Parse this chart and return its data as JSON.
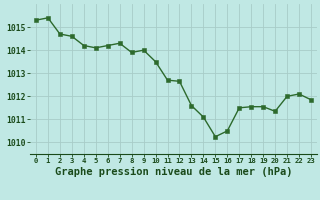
{
  "x": [
    0,
    1,
    2,
    3,
    4,
    5,
    6,
    7,
    8,
    9,
    10,
    11,
    12,
    13,
    14,
    15,
    16,
    17,
    18,
    19,
    20,
    21,
    22,
    23
  ],
  "y": [
    1015.3,
    1015.4,
    1014.7,
    1014.6,
    1014.2,
    1014.1,
    1014.2,
    1014.3,
    1013.9,
    1014.0,
    1013.5,
    1012.7,
    1012.65,
    1011.6,
    1011.1,
    1010.25,
    1010.5,
    1011.5,
    1011.55,
    1011.55,
    1011.35,
    1012.0,
    1012.1,
    1011.85
  ],
  "line_color": "#2d6a2d",
  "marker_color": "#2d6a2d",
  "bg_color": "#c0e8e4",
  "grid_color": "#a8ccc8",
  "xlabel": "Graphe pression niveau de la mer (hPa)",
  "xlabel_fontsize": 7.5,
  "xlabel_color": "#1a4a1a",
  "tick_color": "#1a4a1a",
  "ylim": [
    1009.5,
    1016.0
  ],
  "yticks": [
    1010,
    1011,
    1012,
    1013,
    1014,
    1015
  ],
  "xticks": [
    0,
    1,
    2,
    3,
    4,
    5,
    6,
    7,
    8,
    9,
    10,
    11,
    12,
    13,
    14,
    15,
    16,
    17,
    18,
    19,
    20,
    21,
    22,
    23
  ],
  "linewidth": 1.0,
  "markersize": 2.8
}
